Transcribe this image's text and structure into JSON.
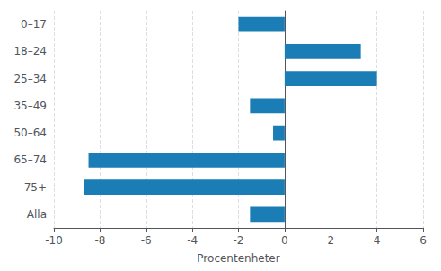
{
  "chart_data": {
    "type": "bar",
    "orientation": "horizontal",
    "categories": [
      "0–17",
      "18–24",
      "25–34",
      "35–49",
      "50–64",
      "65–74",
      "75+",
      "Alla"
    ],
    "values": [
      -2.0,
      3.3,
      4.0,
      -1.5,
      -0.5,
      -8.5,
      -8.7,
      -1.5
    ],
    "color": "#1a7db5",
    "xlabel": "Procentenheter",
    "xlim": [
      -10,
      6
    ],
    "xticks": [
      -10,
      -8,
      -6,
      -4,
      -2,
      0,
      2,
      4,
      6
    ],
    "grid": true
  }
}
